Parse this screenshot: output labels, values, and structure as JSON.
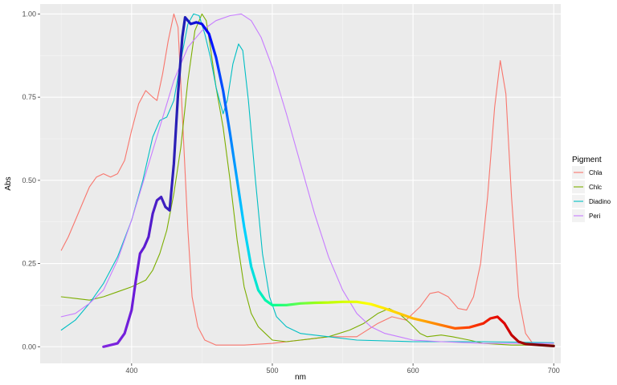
{
  "chart_data": {
    "type": "line",
    "xlabel": "nm",
    "ylabel": "Abs",
    "xlim": [
      335,
      705
    ],
    "ylim": [
      -0.05,
      1.03
    ],
    "x_ticks": [
      400,
      500,
      600,
      700
    ],
    "y_ticks": [
      0.0,
      0.25,
      0.5,
      0.75,
      1.0
    ],
    "x_tick_labels": [
      "400",
      "500",
      "600",
      "700"
    ],
    "y_tick_labels": [
      "0.00",
      "0.25",
      "0.50",
      "0.75",
      "1.00"
    ],
    "grid": true,
    "legend": {
      "title": "Pigment",
      "position": "right"
    },
    "series": [
      {
        "name": "Chla",
        "color": "#F8766D",
        "points": [
          [
            350,
            0.29
          ],
          [
            355,
            0.33
          ],
          [
            360,
            0.38
          ],
          [
            365,
            0.43
          ],
          [
            370,
            0.48
          ],
          [
            375,
            0.51
          ],
          [
            380,
            0.52
          ],
          [
            385,
            0.51
          ],
          [
            390,
            0.52
          ],
          [
            395,
            0.56
          ],
          [
            400,
            0.65
          ],
          [
            405,
            0.73
          ],
          [
            410,
            0.77
          ],
          [
            415,
            0.75
          ],
          [
            418,
            0.74
          ],
          [
            422,
            0.82
          ],
          [
            426,
            0.92
          ],
          [
            430,
            1.0
          ],
          [
            433,
            0.96
          ],
          [
            436,
            0.7
          ],
          [
            440,
            0.35
          ],
          [
            443,
            0.15
          ],
          [
            447,
            0.06
          ],
          [
            452,
            0.02
          ],
          [
            460,
            0.005
          ],
          [
            480,
            0.005
          ],
          [
            500,
            0.01
          ],
          [
            520,
            0.02
          ],
          [
            540,
            0.03
          ],
          [
            560,
            0.03
          ],
          [
            575,
            0.07
          ],
          [
            585,
            0.09
          ],
          [
            595,
            0.08
          ],
          [
            605,
            0.12
          ],
          [
            612,
            0.16
          ],
          [
            618,
            0.165
          ],
          [
            625,
            0.15
          ],
          [
            632,
            0.115
          ],
          [
            638,
            0.11
          ],
          [
            643,
            0.15
          ],
          [
            648,
            0.25
          ],
          [
            653,
            0.45
          ],
          [
            658,
            0.72
          ],
          [
            662,
            0.86
          ],
          [
            666,
            0.76
          ],
          [
            670,
            0.45
          ],
          [
            675,
            0.15
          ],
          [
            680,
            0.04
          ],
          [
            685,
            0.01
          ],
          [
            700,
            0.005
          ]
        ]
      },
      {
        "name": "Chlc",
        "color": "#7CAE00",
        "points": [
          [
            350,
            0.15
          ],
          [
            360,
            0.145
          ],
          [
            370,
            0.14
          ],
          [
            380,
            0.15
          ],
          [
            390,
            0.165
          ],
          [
            400,
            0.18
          ],
          [
            410,
            0.2
          ],
          [
            415,
            0.23
          ],
          [
            420,
            0.28
          ],
          [
            425,
            0.35
          ],
          [
            430,
            0.46
          ],
          [
            435,
            0.6
          ],
          [
            440,
            0.8
          ],
          [
            445,
            0.95
          ],
          [
            450,
            1.0
          ],
          [
            453,
            0.98
          ],
          [
            456,
            0.9
          ],
          [
            460,
            0.78
          ],
          [
            465,
            0.66
          ],
          [
            470,
            0.5
          ],
          [
            475,
            0.32
          ],
          [
            480,
            0.18
          ],
          [
            485,
            0.1
          ],
          [
            490,
            0.06
          ],
          [
            495,
            0.04
          ],
          [
            500,
            0.02
          ],
          [
            510,
            0.015
          ],
          [
            520,
            0.02
          ],
          [
            540,
            0.03
          ],
          [
            555,
            0.05
          ],
          [
            565,
            0.07
          ],
          [
            575,
            0.1
          ],
          [
            583,
            0.115
          ],
          [
            590,
            0.1
          ],
          [
            598,
            0.07
          ],
          [
            605,
            0.04
          ],
          [
            610,
            0.03
          ],
          [
            620,
            0.035
          ],
          [
            628,
            0.03
          ],
          [
            640,
            0.02
          ],
          [
            650,
            0.01
          ],
          [
            670,
            0.005
          ],
          [
            700,
            0.005
          ]
        ]
      },
      {
        "name": "Diadino",
        "color": "#00BFC4",
        "points": [
          [
            350,
            0.05
          ],
          [
            360,
            0.08
          ],
          [
            370,
            0.13
          ],
          [
            380,
            0.19
          ],
          [
            390,
            0.27
          ],
          [
            400,
            0.38
          ],
          [
            408,
            0.5
          ],
          [
            415,
            0.63
          ],
          [
            420,
            0.68
          ],
          [
            425,
            0.69
          ],
          [
            430,
            0.74
          ],
          [
            435,
            0.86
          ],
          [
            440,
            0.97
          ],
          [
            444,
            1.0
          ],
          [
            448,
            0.995
          ],
          [
            452,
            0.94
          ],
          [
            456,
            0.87
          ],
          [
            460,
            0.78
          ],
          [
            465,
            0.7
          ],
          [
            468,
            0.74
          ],
          [
            472,
            0.85
          ],
          [
            476,
            0.91
          ],
          [
            479,
            0.89
          ],
          [
            483,
            0.74
          ],
          [
            488,
            0.5
          ],
          [
            493,
            0.28
          ],
          [
            498,
            0.15
          ],
          [
            503,
            0.09
          ],
          [
            510,
            0.06
          ],
          [
            520,
            0.04
          ],
          [
            540,
            0.03
          ],
          [
            560,
            0.02
          ],
          [
            600,
            0.015
          ],
          [
            650,
            0.015
          ],
          [
            700,
            0.012
          ]
        ]
      },
      {
        "name": "Peri",
        "color": "#C77CFF",
        "points": [
          [
            350,
            0.09
          ],
          [
            360,
            0.1
          ],
          [
            370,
            0.13
          ],
          [
            380,
            0.17
          ],
          [
            390,
            0.26
          ],
          [
            400,
            0.38
          ],
          [
            410,
            0.52
          ],
          [
            420,
            0.66
          ],
          [
            430,
            0.8
          ],
          [
            440,
            0.9
          ],
          [
            450,
            0.95
          ],
          [
            460,
            0.98
          ],
          [
            470,
            0.995
          ],
          [
            478,
            1.0
          ],
          [
            485,
            0.98
          ],
          [
            492,
            0.93
          ],
          [
            500,
            0.84
          ],
          [
            510,
            0.7
          ],
          [
            520,
            0.55
          ],
          [
            530,
            0.4
          ],
          [
            540,
            0.27
          ],
          [
            550,
            0.17
          ],
          [
            560,
            0.1
          ],
          [
            570,
            0.06
          ],
          [
            580,
            0.04
          ],
          [
            590,
            0.03
          ],
          [
            600,
            0.02
          ],
          [
            620,
            0.015
          ],
          [
            650,
            0.01
          ],
          [
            700,
            0.01
          ]
        ]
      },
      {
        "points": [
          [
            380,
            0.0
          ],
          [
            385,
            0.005
          ],
          [
            390,
            0.01
          ],
          [
            395,
            0.04
          ],
          [
            400,
            0.11
          ],
          [
            403,
            0.2
          ],
          [
            406,
            0.28
          ],
          [
            409,
            0.3
          ],
          [
            412,
            0.33
          ],
          [
            415,
            0.4
          ],
          [
            418,
            0.44
          ],
          [
            421,
            0.45
          ],
          [
            424,
            0.42
          ],
          [
            427,
            0.41
          ],
          [
            430,
            0.55
          ],
          [
            433,
            0.76
          ],
          [
            436,
            0.93
          ],
          [
            438,
            0.99
          ],
          [
            442,
            0.97
          ],
          [
            446,
            0.975
          ],
          [
            450,
            0.97
          ],
          [
            455,
            0.94
          ],
          [
            460,
            0.87
          ],
          [
            465,
            0.77
          ],
          [
            470,
            0.64
          ],
          [
            475,
            0.5
          ],
          [
            480,
            0.36
          ],
          [
            485,
            0.24
          ],
          [
            490,
            0.17
          ],
          [
            495,
            0.14
          ],
          [
            500,
            0.125
          ],
          [
            510,
            0.125
          ],
          [
            520,
            0.13
          ],
          [
            530,
            0.132
          ],
          [
            540,
            0.133
          ],
          [
            550,
            0.135
          ],
          [
            560,
            0.135
          ],
          [
            570,
            0.128
          ],
          [
            580,
            0.115
          ],
          [
            590,
            0.1
          ],
          [
            600,
            0.085
          ],
          [
            610,
            0.075
          ],
          [
            620,
            0.065
          ],
          [
            630,
            0.055
          ],
          [
            640,
            0.058
          ],
          [
            650,
            0.07
          ],
          [
            655,
            0.085
          ],
          [
            660,
            0.09
          ],
          [
            665,
            0.07
          ],
          [
            670,
            0.035
          ],
          [
            675,
            0.015
          ],
          [
            680,
            0.008
          ],
          [
            690,
            0.005
          ],
          [
            700,
            0.002
          ]
        ]
      }
    ]
  }
}
